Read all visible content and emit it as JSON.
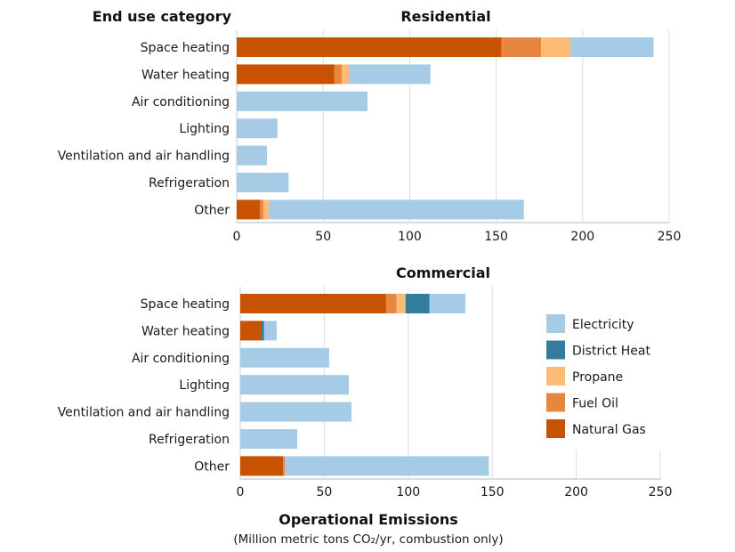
{
  "chart_data": {
    "type": "bar",
    "orientation": "horizontal",
    "stacked": true,
    "category_header": "End use category",
    "xlabel": "Operational Emissions",
    "xlabel_sub": "(Million metric tons CO₂/yr, combustion only)",
    "categories": [
      "Space heating",
      "Water heating",
      "Air conditioning",
      "Lighting",
      "Ventilation and air handling",
      "Refrigeration",
      "Other"
    ],
    "series_names": [
      "Natural Gas",
      "Fuel Oil",
      "Propane",
      "District Heat",
      "Electricity"
    ],
    "colors": {
      "Electricity": "#A6CBE7",
      "District Heat": "#337C9E",
      "Propane": "#FDBB78",
      "Fuel Oil": "#E8863F",
      "Natural Gas": "#C75200"
    },
    "legend": {
      "placement": "right",
      "entries": [
        "Electricity",
        "District Heat",
        "Propane",
        "Fuel Oil",
        "Natural Gas"
      ]
    },
    "xlim": [
      0,
      250
    ],
    "xticks": [
      0,
      50,
      100,
      150,
      200,
      250
    ],
    "grid": true,
    "panels": [
      {
        "title": "Residential",
        "series": [
          {
            "name": "Natural Gas",
            "values": [
              153,
              56.5,
              0,
              0,
              0,
              0,
              13.4
            ]
          },
          {
            "name": "Fuel Oil",
            "values": [
              23,
              4.2,
              0,
              0,
              0,
              0,
              2
            ]
          },
          {
            "name": "Propane",
            "values": [
              17,
              4.1,
              0,
              0,
              0,
              0,
              3.1
            ]
          },
          {
            "name": "District Heat",
            "values": [
              0,
              0,
              0,
              0,
              0,
              0,
              0
            ]
          },
          {
            "name": "Electricity",
            "values": [
              48,
              47.2,
              75.6,
              23.6,
              17.5,
              30,
              147.5
            ]
          }
        ]
      },
      {
        "title": "Commercial",
        "series": [
          {
            "name": "Natural Gas",
            "values": [
              86.8,
              12.7,
              0,
              0,
              0,
              0,
              25.5
            ]
          },
          {
            "name": "Fuel Oil",
            "values": [
              6.2,
              0,
              0,
              0,
              0,
              0,
              1
            ]
          },
          {
            "name": "Propane",
            "values": [
              5.4,
              0,
              0,
              0,
              0,
              0,
              0
            ]
          },
          {
            "name": "District Heat",
            "values": [
              14.3,
              1.5,
              0,
              0,
              0,
              0,
              0
            ]
          },
          {
            "name": "Electricity",
            "values": [
              21.3,
              7.5,
              52.9,
              64.6,
              66.2,
              33.9,
              121.5
            ]
          }
        ]
      }
    ]
  }
}
